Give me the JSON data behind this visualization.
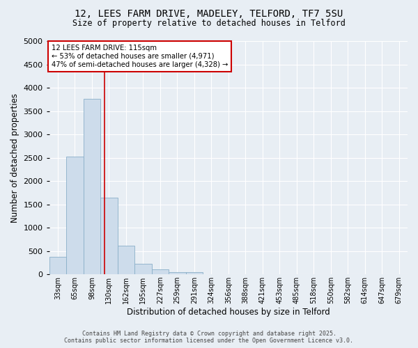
{
  "title_line1": "12, LEES FARM DRIVE, MADELEY, TELFORD, TF7 5SU",
  "title_line2": "Size of property relative to detached houses in Telford",
  "xlabel": "Distribution of detached houses by size in Telford",
  "ylabel": "Number of detached properties",
  "bin_labels": [
    "33sqm",
    "65sqm",
    "98sqm",
    "130sqm",
    "162sqm",
    "195sqm",
    "227sqm",
    "259sqm",
    "291sqm",
    "324sqm",
    "356sqm",
    "388sqm",
    "421sqm",
    "453sqm",
    "485sqm",
    "518sqm",
    "550sqm",
    "582sqm",
    "614sqm",
    "647sqm",
    "679sqm"
  ],
  "bar_heights": [
    370,
    2520,
    3760,
    1650,
    620,
    230,
    100,
    50,
    50,
    0,
    0,
    0,
    0,
    0,
    0,
    0,
    0,
    0,
    0,
    0,
    0
  ],
  "bar_color": "#cddceb",
  "bar_edge_color": "#89afc8",
  "red_line_x": 2.75,
  "annotation_line1": "12 LEES FARM DRIVE: 115sqm",
  "annotation_line2": "← 53% of detached houses are smaller (4,971)",
  "annotation_line3": "47% of semi-detached houses are larger (4,328) →",
  "annotation_box_color": "#ffffff",
  "annotation_box_edge": "#cc0000",
  "ylim": [
    0,
    5000
  ],
  "yticks": [
    0,
    500,
    1000,
    1500,
    2000,
    2500,
    3000,
    3500,
    4000,
    4500,
    5000
  ],
  "footnote_line1": "Contains HM Land Registry data © Crown copyright and database right 2025.",
  "footnote_line2": "Contains public sector information licensed under the Open Government Licence v3.0.",
  "bg_color": "#e8eef4",
  "plot_bg_color": "#e8eef4",
  "grid_color": "#ffffff"
}
